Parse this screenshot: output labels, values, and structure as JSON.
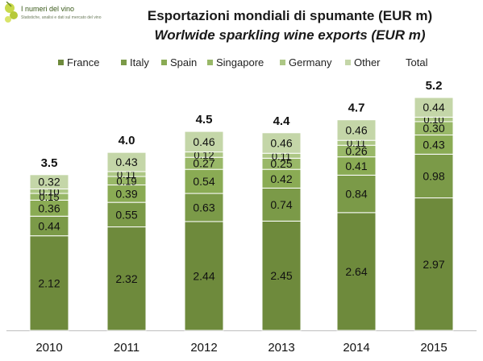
{
  "brand": {
    "name": "I numeri del vino",
    "tagline": "Statistiche, analisi e dati sul mercato del vino"
  },
  "chart_data": {
    "type": "bar",
    "stacked": true,
    "title": "Esportazioni mondiali di spumante (EUR m)",
    "subtitle": "Worlwide sparkling wine exports (EUR m)",
    "categories": [
      "2010",
      "2011",
      "2012",
      "2013",
      "2014",
      "2015"
    ],
    "series": [
      {
        "name": "France",
        "color": "#6e8a3c",
        "values": [
          2.12,
          2.32,
          2.44,
          2.45,
          2.64,
          2.97
        ]
      },
      {
        "name": "Italy",
        "color": "#7b9a48",
        "values": [
          0.44,
          0.55,
          0.63,
          0.74,
          0.84,
          0.98
        ]
      },
      {
        "name": "Spain",
        "color": "#8aab54",
        "values": [
          0.36,
          0.39,
          0.54,
          0.42,
          0.41,
          0.43
        ]
      },
      {
        "name": "Singapore",
        "color": "#99b868",
        "values": [
          0.15,
          0.19,
          0.27,
          0.25,
          0.26,
          0.3
        ]
      },
      {
        "name": "Germany",
        "color": "#adc785",
        "values": [
          0.1,
          0.11,
          0.12,
          0.11,
          0.11,
          0.1
        ]
      },
      {
        "name": "Other",
        "color": "#c4d6a8",
        "values": [
          0.32,
          0.43,
          0.46,
          0.46,
          0.46,
          0.44
        ]
      }
    ],
    "totals": {
      "name": "Total",
      "values": [
        "3.5",
        "4.0",
        "4.5",
        "4.4",
        "4.7",
        "5.2"
      ]
    },
    "ylim": [
      0,
      5.6
    ],
    "grid": false,
    "legend_position": "top"
  }
}
